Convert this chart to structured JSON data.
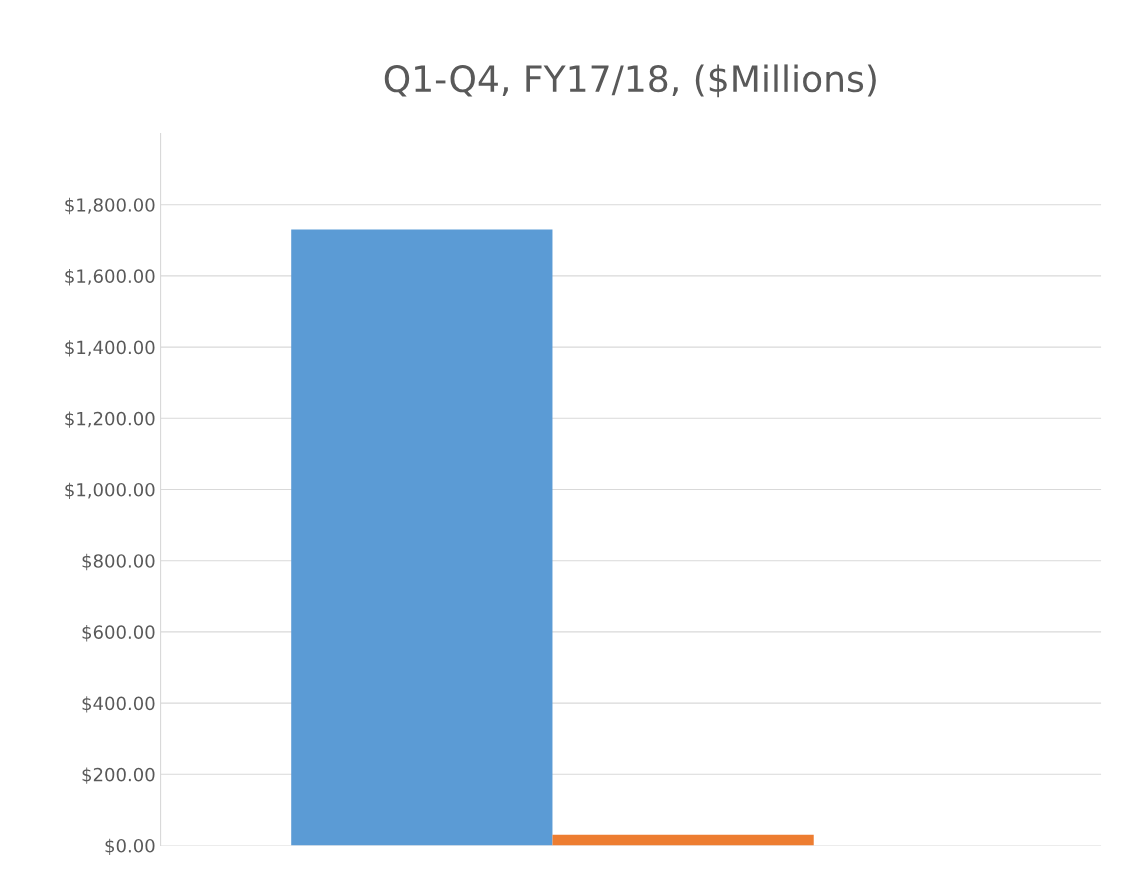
{
  "chart_data": {
    "type": "bar",
    "title": "Q1-Q4, FY17/18, ($Millions)",
    "categories": [
      null,
      null
    ],
    "values": [
      1730,
      30
    ],
    "colors": [
      "#5b9bd5",
      "#ed7d31"
    ],
    "ylim": [
      0,
      2000
    ],
    "yticks": [
      {
        "value": 0,
        "label": "$0.00"
      },
      {
        "value": 200,
        "label": "$200.00"
      },
      {
        "value": 400,
        "label": "$400.00"
      },
      {
        "value": 600,
        "label": "$600.00"
      },
      {
        "value": 800,
        "label": "$800.00"
      },
      {
        "value": 1000,
        "label": "$1,000.00"
      },
      {
        "value": 1200,
        "label": "$1,200.00"
      },
      {
        "value": 1400,
        "label": "$1,400.00"
      },
      {
        "value": 1600,
        "label": "$1,600.00"
      },
      {
        "value": 1800,
        "label": "$1,800.00"
      }
    ],
    "grid": "y"
  }
}
